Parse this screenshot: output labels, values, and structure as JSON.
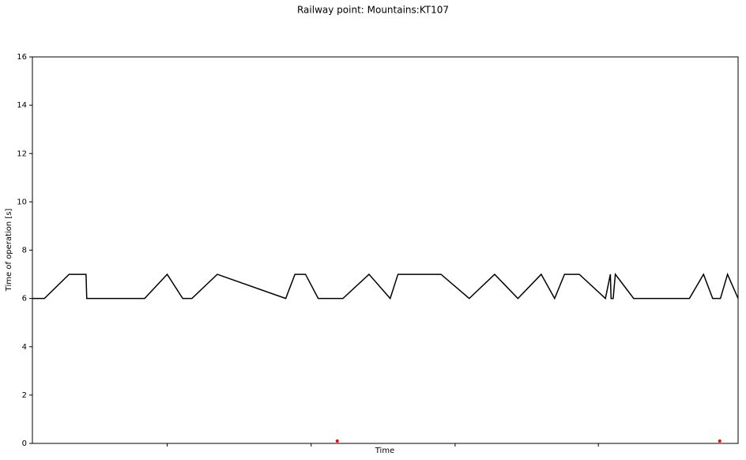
{
  "chart_data": {
    "type": "line",
    "title": "Railway point: Mountains:KT107",
    "xlabel": "Time",
    "ylabel": "Time of operation [s]",
    "x": [
      0,
      1.7,
      5.2,
      7.6,
      7.7,
      15.9,
      19.1,
      21.3,
      22.6,
      26.2,
      35.9,
      37.2,
      38.7,
      40.5,
      44.0,
      47.7,
      50.7,
      51.8,
      57.9,
      61.9,
      65.5,
      68.8,
      72.1,
      74.0,
      75.4,
      77.5,
      81.2,
      81.9,
      82.0,
      82.3,
      82.6,
      85.2,
      93.1,
      95.1,
      96.4,
      97.5,
      98.5,
      100
    ],
    "series": [
      {
        "type": "line",
        "color": "#000000",
        "values": [
          6,
          6,
          7,
          7,
          6,
          6,
          7,
          6,
          6,
          7,
          6,
          7,
          7,
          6,
          6,
          7,
          6,
          7,
          7,
          6,
          7,
          6,
          7,
          6,
          7,
          7,
          6,
          7,
          6,
          6,
          7,
          6,
          6,
          7,
          6,
          6,
          7,
          6
        ]
      },
      {
        "type": "scatter",
        "color": "#ff0000",
        "x": [
          43.2,
          97.4
        ],
        "values": [
          0.1,
          0.1
        ]
      }
    ],
    "xlim": [
      0,
      100
    ],
    "xticks": [
      19.1,
      39.5,
      59.9,
      80.2
    ],
    "ylim": [
      0,
      16
    ],
    "yticks": [
      0,
      2,
      4,
      6,
      8,
      10,
      12,
      14,
      16
    ]
  }
}
